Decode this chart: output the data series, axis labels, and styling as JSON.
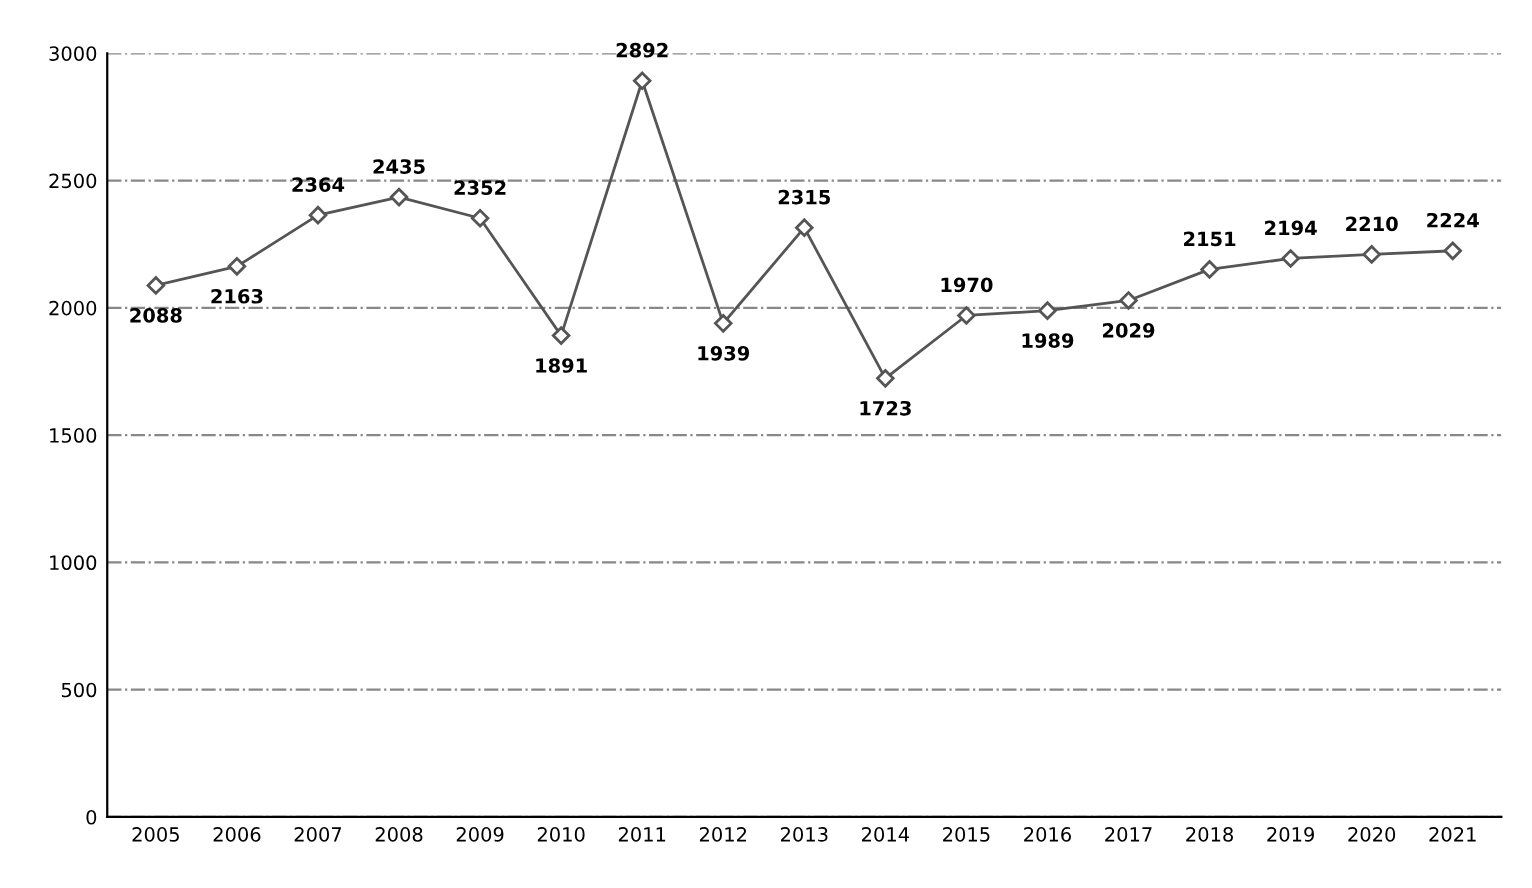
{
  "chart_data": {
    "type": "line",
    "categories": [
      "2005",
      "2006",
      "2007",
      "2008",
      "2009",
      "2010",
      "2011",
      "2012",
      "2013",
      "2014",
      "2015",
      "2016",
      "2017",
      "2018",
      "2019",
      "2020",
      "2021"
    ],
    "series": [
      {
        "color": "#555555",
        "values": [
          2088,
          2163,
          2364,
          2435,
          2352,
          1891,
          2892,
          1939,
          2315,
          1723,
          1970,
          1989,
          2029,
          2151,
          2194,
          2210,
          2224
        ]
      }
    ],
    "ylim": [
      0,
      3000
    ],
    "yticks": [
      0,
      500,
      1000,
      1500,
      2000,
      2500,
      3000
    ],
    "grid": "y",
    "marker": "diamond",
    "line_style": "solid",
    "data_labels": true
  }
}
